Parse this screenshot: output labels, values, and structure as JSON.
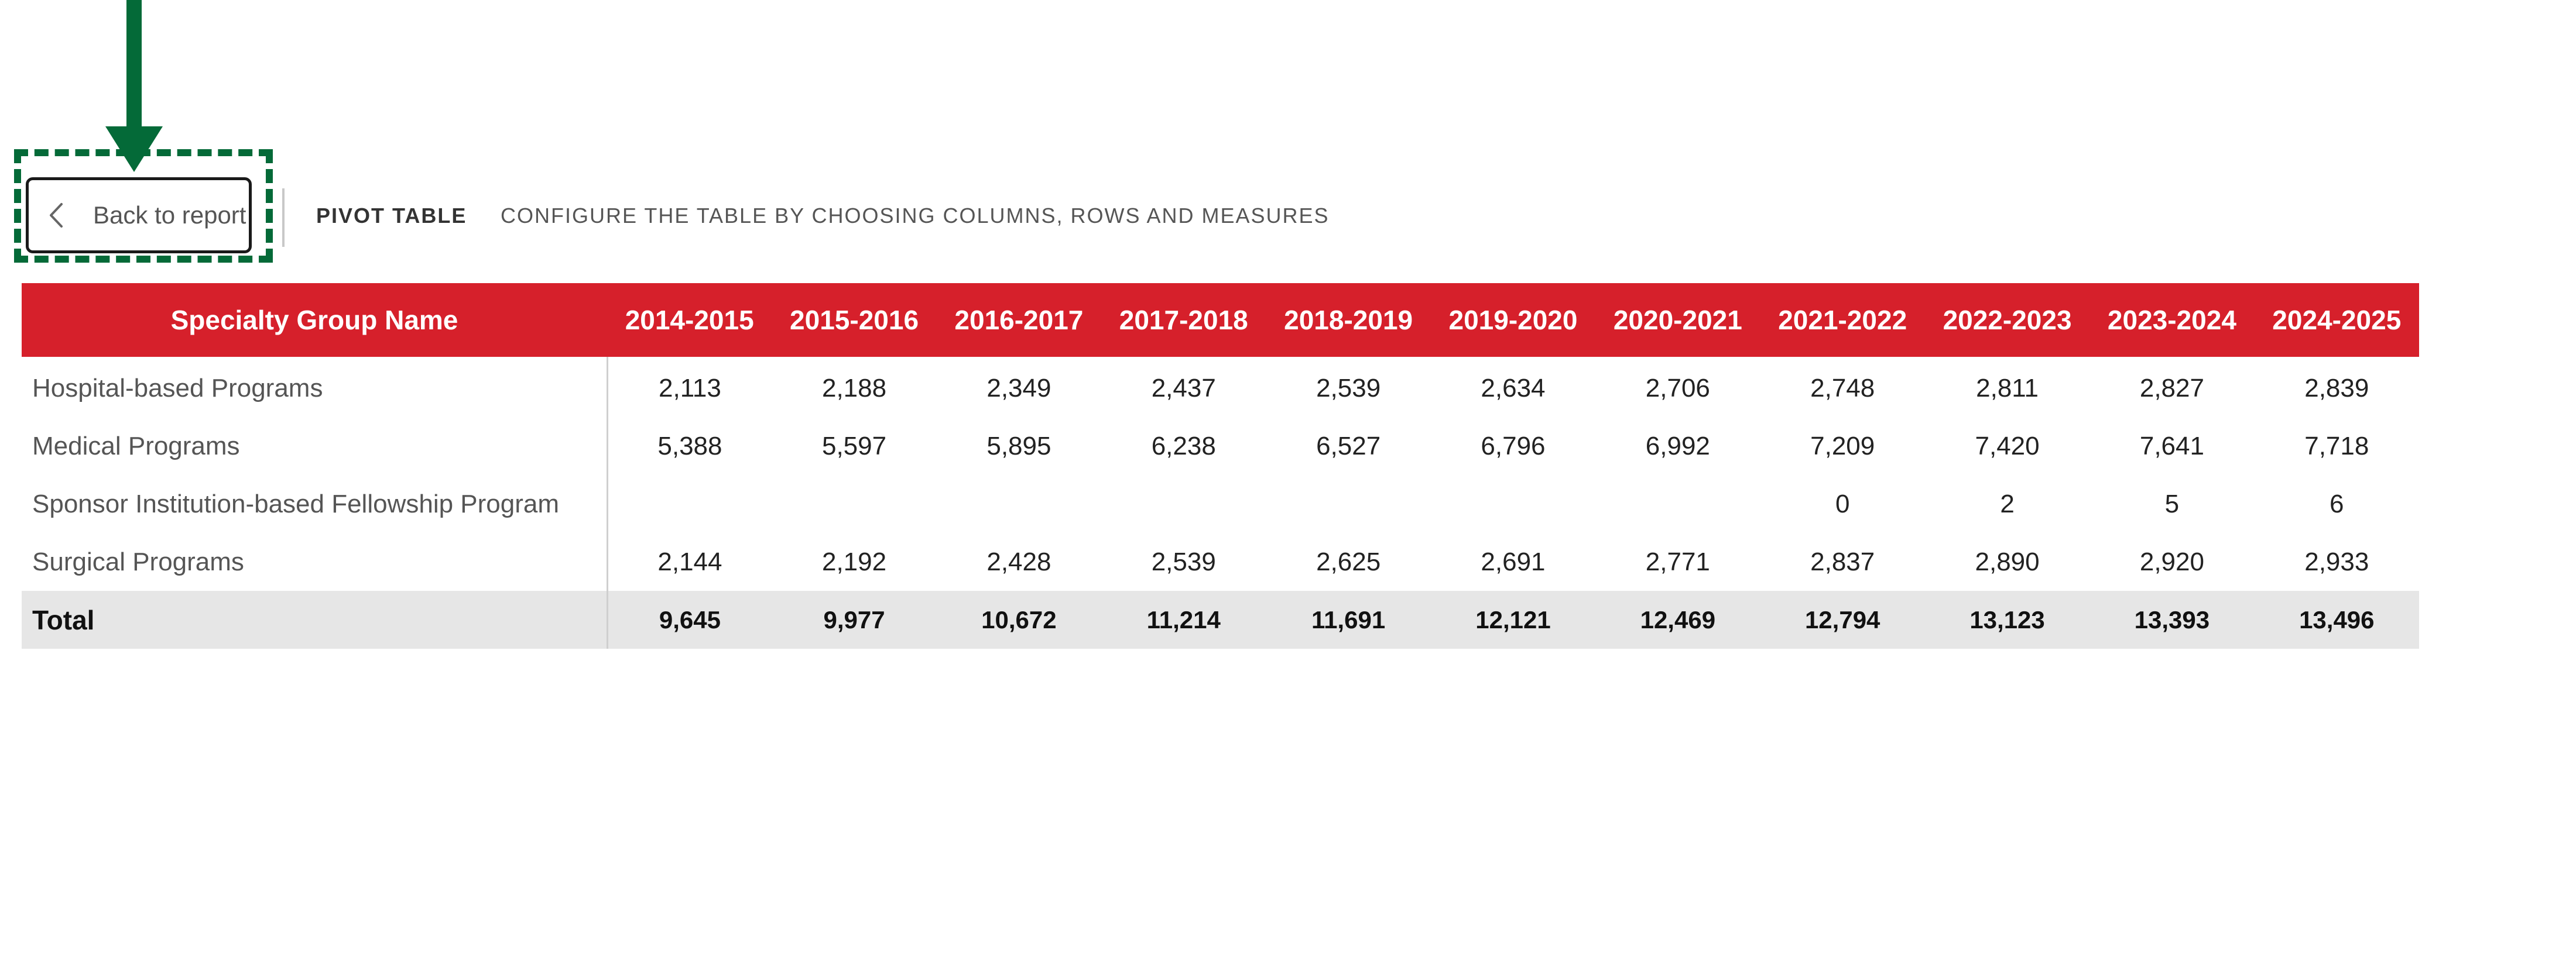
{
  "header": {
    "back_label": "Back to report",
    "title": "PIVOT TABLE",
    "subtitle": "CONFIGURE THE TABLE BY CHOOSING COLUMNS, ROWS AND MEASURES"
  },
  "icons": {
    "back": "chevron-left-icon",
    "annotation": "arrow-down-icon"
  },
  "colors": {
    "header_bg": "#d6202b",
    "annotation": "#046a38",
    "total_bg": "#e6e6e6"
  },
  "table": {
    "columns": [
      "Specialty Group Name",
      "2014-2015",
      "2015-2016",
      "2016-2017",
      "2017-2018",
      "2018-2019",
      "2019-2020",
      "2020-2021",
      "2021-2022",
      "2022-2023",
      "2023-2024",
      "2024-2025"
    ],
    "rows": [
      {
        "name": "Hospital-based Programs",
        "values": [
          "2,113",
          "2,188",
          "2,349",
          "2,437",
          "2,539",
          "2,634",
          "2,706",
          "2,748",
          "2,811",
          "2,827",
          "2,839"
        ]
      },
      {
        "name": "Medical Programs",
        "values": [
          "5,388",
          "5,597",
          "5,895",
          "6,238",
          "6,527",
          "6,796",
          "6,992",
          "7,209",
          "7,420",
          "7,641",
          "7,718"
        ]
      },
      {
        "name": "Sponsor Institution-based Fellowship Program",
        "values": [
          "",
          "",
          "",
          "",
          "",
          "",
          "",
          "0",
          "2",
          "5",
          "6"
        ]
      },
      {
        "name": "Surgical Programs",
        "values": [
          "2,144",
          "2,192",
          "2,428",
          "2,539",
          "2,625",
          "2,691",
          "2,771",
          "2,837",
          "2,890",
          "2,920",
          "2,933"
        ]
      }
    ],
    "total": {
      "name": "Total",
      "values": [
        "9,645",
        "9,977",
        "10,672",
        "11,214",
        "11,691",
        "12,121",
        "12,469",
        "12,794",
        "13,123",
        "13,393",
        "13,496"
      ]
    }
  }
}
